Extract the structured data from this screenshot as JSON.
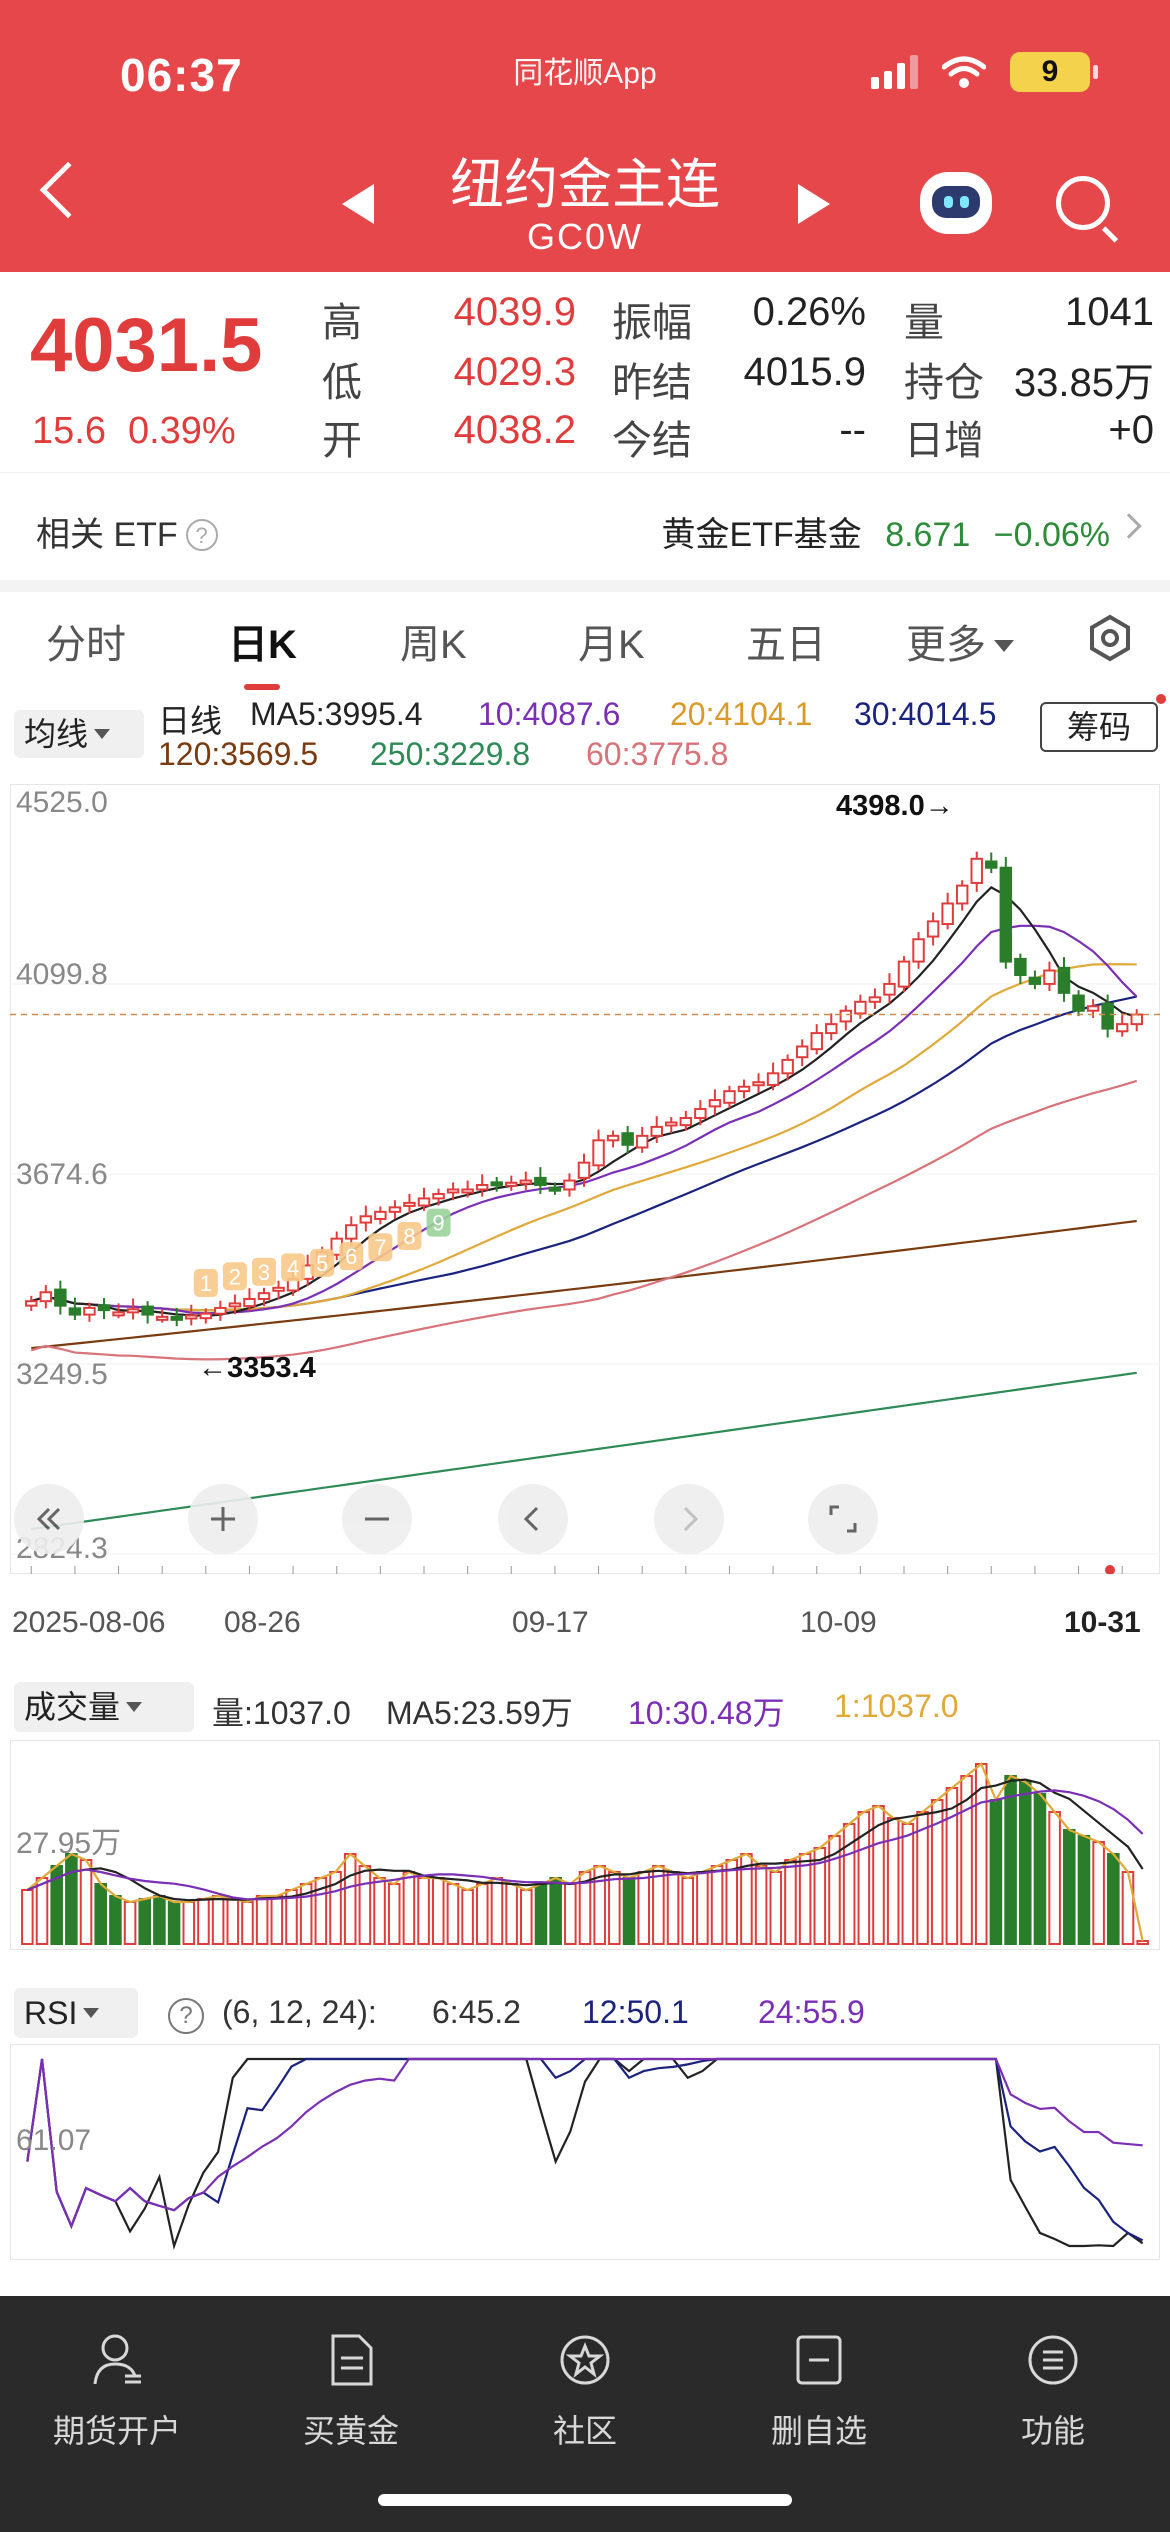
{
  "status_bar": {
    "time": "06:37",
    "app_name": "同花顺App",
    "battery": "9"
  },
  "nav": {
    "title": "纽约金主连",
    "subtitle": "GC0W"
  },
  "quote": {
    "price": "4031.5",
    "change": "15.6",
    "change_pct": "0.39%",
    "high_label": "高",
    "high": "4039.9",
    "low_label": "低",
    "low": "4029.3",
    "open_label": "开",
    "open": "4038.2",
    "amplitude_label": "振幅",
    "amplitude": "0.26%",
    "prev_settle_label": "昨结",
    "prev_settle": "4015.9",
    "today_settle_label": "今结",
    "today_settle": "--",
    "volume_label": "量",
    "volume": "1041",
    "open_interest_label": "持仓",
    "open_interest": "33.85万",
    "daily_increase_label": "日增",
    "daily_increase": "+0"
  },
  "etf": {
    "label": "相关 ETF",
    "name": "黄金ETF基金",
    "price": "8.671",
    "change_pct": "−0.06%"
  },
  "tabs": [
    "分时",
    "日K",
    "周K",
    "月K",
    "五日",
    "更多"
  ],
  "active_tab": "日K",
  "ma_legend": {
    "selector": "均线",
    "line_type": "日线",
    "ma5": "MA5:3995.4",
    "ma10": "10:4087.6",
    "ma20": "20:4104.1",
    "ma30": "30:4014.5",
    "ma120": "120:3569.5",
    "ma250": "250:3229.8",
    "ma60": "60:3775.8",
    "chips_button": "筹码"
  },
  "colors": {
    "up": "#e03c3c",
    "down": "#2a7d2a",
    "ma5": "#222222",
    "ma10": "#7a2fb5",
    "ma20": "#e0a93a",
    "ma30": "#1a237e",
    "ma60": "#d9737a",
    "ma120": "#7a3b10",
    "ma250": "#2e8b57"
  },
  "chart_data": {
    "type": "candlestick",
    "y_axis_ticks": [
      "4525.0",
      "4099.8",
      "3674.6",
      "3249.5",
      "2824.3"
    ],
    "ylim": [
      2824.3,
      4525.0
    ],
    "x_axis_ticks": [
      "2025-08-06",
      "08-26",
      "09-17",
      "10-09",
      "10-31"
    ],
    "max_label": "4398.0",
    "min_label": "3353.4",
    "last_price_reference": 4031.5,
    "closes": [
      3390,
      3410,
      3380,
      3360,
      3375,
      3370,
      3365,
      3372,
      3360,
      3355,
      3350,
      3358,
      3362,
      3375,
      3385,
      3395,
      3408,
      3420,
      3440,
      3470,
      3500,
      3530,
      3560,
      3580,
      3590,
      3600,
      3610,
      3620,
      3630,
      3640,
      3640,
      3650,
      3655,
      3655,
      3660,
      3650,
      3640,
      3660,
      3700,
      3750,
      3760,
      3740,
      3760,
      3780,
      3790,
      3800,
      3820,
      3840,
      3860,
      3870,
      3880,
      3900,
      3930,
      3960,
      3990,
      4010,
      4040,
      4060,
      4070,
      4100,
      4150,
      4200,
      4240,
      4280,
      4320,
      4380,
      4360,
      4150,
      4120,
      4100,
      4130,
      4080,
      4040,
      4050,
      4000,
      4010,
      4031.5
    ],
    "numbers": [
      {
        "label": "1",
        "value": 3395
      },
      {
        "label": "2",
        "value": 3410
      },
      {
        "label": "3",
        "value": 3420
      },
      {
        "label": "4",
        "value": 3430
      },
      {
        "label": "5",
        "value": 3440
      },
      {
        "label": "6",
        "value": 3455
      },
      {
        "label": "7",
        "value": 3475
      },
      {
        "label": "8",
        "value": 3500
      },
      {
        "label": "9",
        "value": 3530
      }
    ]
  },
  "chart_controls": [
    "scroll-left",
    "zoom-in",
    "zoom-out",
    "prev",
    "next",
    "fullscreen"
  ],
  "volume": {
    "selector": "成交量",
    "vol": "量:1037.0",
    "ma5": "MA5:23.59万",
    "ma10": "10:30.48万",
    "ma1": "1:1037.0",
    "axis_label": "27.95万",
    "values": [
      18,
      22,
      26,
      30,
      28,
      20,
      16,
      14,
      15,
      16,
      14,
      14,
      15,
      16,
      15,
      14,
      16,
      16,
      18,
      20,
      22,
      24,
      30,
      26,
      22,
      20,
      24,
      22,
      22,
      20,
      18,
      20,
      22,
      20,
      18,
      20,
      22,
      20,
      24,
      26,
      24,
      22,
      24,
      26,
      24,
      22,
      24,
      26,
      28,
      30,
      26,
      24,
      28,
      30,
      32,
      36,
      40,
      44,
      46,
      42,
      40,
      44,
      48,
      52,
      56,
      60,
      48,
      56,
      54,
      50,
      44,
      38,
      36,
      34,
      30,
      24,
      1
    ]
  },
  "rsi": {
    "selector": "RSI",
    "params": "(6, 12, 24):",
    "rsi6": "6:45.2",
    "rsi12": "12:50.1",
    "rsi24": "24:55.9",
    "axis_label": "61.07"
  },
  "bottom_nav": [
    "期货开户",
    "买黄金",
    "社区",
    "删自选",
    "功能"
  ]
}
